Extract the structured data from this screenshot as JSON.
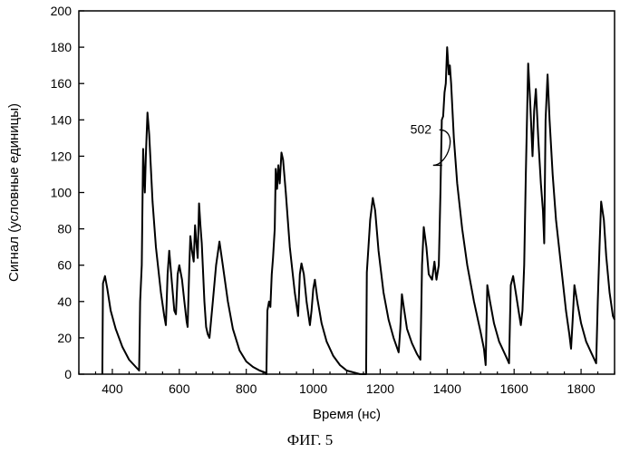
{
  "chart_data": {
    "type": "line",
    "xlabel": "Время (нс)",
    "ylabel": "Сигнал (условные единицы)",
    "xlim": [
      300,
      1900
    ],
    "ylim": [
      0,
      200
    ],
    "x_ticks": [
      400,
      600,
      800,
      1000,
      1200,
      1400,
      1600,
      1800
    ],
    "y_ticks": [
      0,
      20,
      40,
      60,
      80,
      100,
      120,
      140,
      160,
      180,
      200
    ],
    "grid": false,
    "series": [
      {
        "points": [
          [
            370,
            0
          ],
          [
            372,
            50
          ],
          [
            378,
            54
          ],
          [
            385,
            47
          ],
          [
            395,
            35
          ],
          [
            410,
            25
          ],
          [
            430,
            15
          ],
          [
            450,
            8
          ],
          [
            470,
            4
          ],
          [
            480,
            2
          ],
          [
            483,
            40
          ],
          [
            488,
            60
          ],
          [
            492,
            124
          ],
          [
            494,
            112
          ],
          [
            497,
            100
          ],
          [
            500,
            120
          ],
          [
            505,
            144
          ],
          [
            510,
            132
          ],
          [
            520,
            95
          ],
          [
            530,
            70
          ],
          [
            545,
            45
          ],
          [
            555,
            32
          ],
          [
            560,
            27
          ],
          [
            565,
            55
          ],
          [
            570,
            68
          ],
          [
            578,
            50
          ],
          [
            585,
            35
          ],
          [
            590,
            33
          ],
          [
            595,
            55
          ],
          [
            600,
            60
          ],
          [
            608,
            52
          ],
          [
            615,
            40
          ],
          [
            622,
            29
          ],
          [
            625,
            26
          ],
          [
            630,
            60
          ],
          [
            633,
            76
          ],
          [
            638,
            68
          ],
          [
            643,
            62
          ],
          [
            647,
            82
          ],
          [
            651,
            72
          ],
          [
            655,
            64
          ],
          [
            659,
            94
          ],
          [
            663,
            82
          ],
          [
            667,
            72
          ],
          [
            670,
            60
          ],
          [
            675,
            40
          ],
          [
            680,
            26
          ],
          [
            685,
            22
          ],
          [
            690,
            20
          ],
          [
            700,
            40
          ],
          [
            710,
            60
          ],
          [
            720,
            73
          ],
          [
            730,
            60
          ],
          [
            745,
            40
          ],
          [
            760,
            25
          ],
          [
            780,
            13
          ],
          [
            800,
            7
          ],
          [
            820,
            4
          ],
          [
            840,
            2
          ],
          [
            855,
            1
          ],
          [
            860,
            0
          ],
          [
            863,
            35
          ],
          [
            868,
            40
          ],
          [
            872,
            37
          ],
          [
            876,
            55
          ],
          [
            880,
            64
          ],
          [
            885,
            80
          ],
          [
            888,
            113
          ],
          [
            892,
            102
          ],
          [
            896,
            115
          ],
          [
            900,
            105
          ],
          [
            905,
            122
          ],
          [
            910,
            118
          ],
          [
            918,
            100
          ],
          [
            930,
            70
          ],
          [
            945,
            45
          ],
          [
            955,
            32
          ],
          [
            960,
            55
          ],
          [
            965,
            61
          ],
          [
            972,
            55
          ],
          [
            980,
            40
          ],
          [
            990,
            27
          ],
          [
            995,
            35
          ],
          [
            1000,
            47
          ],
          [
            1005,
            52
          ],
          [
            1012,
            42
          ],
          [
            1025,
            28
          ],
          [
            1040,
            18
          ],
          [
            1060,
            10
          ],
          [
            1080,
            5
          ],
          [
            1100,
            2
          ],
          [
            1120,
            1
          ],
          [
            1140,
            0
          ],
          [
            1158,
            0
          ],
          [
            1160,
            56
          ],
          [
            1165,
            70
          ],
          [
            1170,
            85
          ],
          [
            1178,
            97
          ],
          [
            1185,
            90
          ],
          [
            1195,
            68
          ],
          [
            1210,
            45
          ],
          [
            1225,
            30
          ],
          [
            1240,
            20
          ],
          [
            1255,
            12
          ],
          [
            1260,
            25
          ],
          [
            1265,
            44
          ],
          [
            1272,
            35
          ],
          [
            1280,
            25
          ],
          [
            1295,
            17
          ],
          [
            1310,
            11
          ],
          [
            1320,
            8
          ],
          [
            1325,
            60
          ],
          [
            1330,
            81
          ],
          [
            1338,
            70
          ],
          [
            1345,
            55
          ],
          [
            1355,
            52
          ],
          [
            1362,
            62
          ],
          [
            1368,
            52
          ],
          [
            1375,
            60
          ],
          [
            1380,
            100
          ],
          [
            1384,
            140
          ],
          [
            1388,
            142
          ],
          [
            1392,
            155
          ],
          [
            1396,
            160
          ],
          [
            1400,
            180
          ],
          [
            1405,
            165
          ],
          [
            1408,
            170
          ],
          [
            1412,
            160
          ],
          [
            1420,
            130
          ],
          [
            1430,
            105
          ],
          [
            1445,
            80
          ],
          [
            1460,
            60
          ],
          [
            1480,
            40
          ],
          [
            1500,
            23
          ],
          [
            1510,
            14
          ],
          [
            1515,
            5
          ],
          [
            1520,
            49
          ],
          [
            1528,
            40
          ],
          [
            1540,
            28
          ],
          [
            1555,
            18
          ],
          [
            1575,
            10
          ],
          [
            1585,
            6
          ],
          [
            1590,
            49
          ],
          [
            1597,
            54
          ],
          [
            1605,
            45
          ],
          [
            1615,
            33
          ],
          [
            1620,
            27
          ],
          [
            1625,
            35
          ],
          [
            1630,
            60
          ],
          [
            1635,
            110
          ],
          [
            1642,
            171
          ],
          [
            1648,
            150
          ],
          [
            1655,
            120
          ],
          [
            1660,
            145
          ],
          [
            1665,
            157
          ],
          [
            1672,
            130
          ],
          [
            1680,
            105
          ],
          [
            1686,
            90
          ],
          [
            1690,
            72
          ],
          [
            1694,
            140
          ],
          [
            1700,
            165
          ],
          [
            1706,
            140
          ],
          [
            1715,
            110
          ],
          [
            1725,
            85
          ],
          [
            1740,
            60
          ],
          [
            1755,
            35
          ],
          [
            1765,
            22
          ],
          [
            1770,
            14
          ],
          [
            1775,
            30
          ],
          [
            1780,
            49
          ],
          [
            1790,
            38
          ],
          [
            1800,
            28
          ],
          [
            1815,
            18
          ],
          [
            1830,
            12
          ],
          [
            1845,
            6
          ],
          [
            1850,
            40
          ],
          [
            1855,
            70
          ],
          [
            1860,
            95
          ],
          [
            1868,
            85
          ],
          [
            1875,
            65
          ],
          [
            1885,
            45
          ],
          [
            1895,
            32
          ],
          [
            1900,
            30
          ]
        ]
      }
    ],
    "annotations": [
      {
        "text": "502",
        "at": [
          1385,
          115
        ],
        "label_at": [
          1290,
          135
        ]
      }
    ]
  },
  "caption": "ФИГ. 5"
}
